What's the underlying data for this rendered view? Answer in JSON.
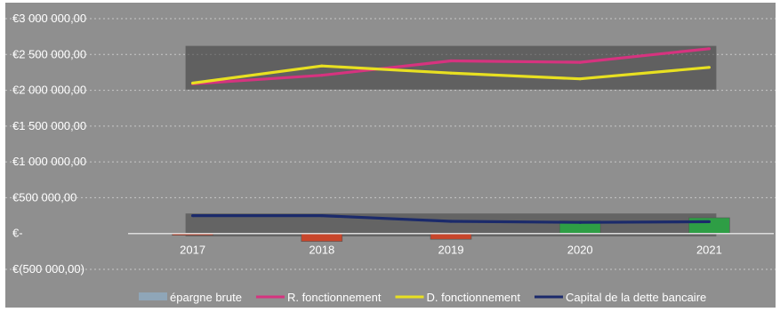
{
  "chart_data": {
    "type": "bar",
    "title": "",
    "xlabel": "",
    "ylabel": "",
    "categories": [
      "2017",
      "2018",
      "2019",
      "2020",
      "2021"
    ],
    "ylim": [
      -500000,
      3000000
    ],
    "yticks": [
      3000000,
      2500000,
      2000000,
      1500000,
      1000000,
      500000,
      0,
      -500000
    ],
    "ytick_labels": [
      "€3 000 000,00",
      "€2 500 000,00",
      "€2 000 000,00",
      "€1 500 000,00",
      "€1 000 000,00",
      "€500 000,00",
      "€-",
      "€(500 000,00)"
    ],
    "grid": true,
    "legend_position": "bottom",
    "background": "#8f8f8f",
    "series": [
      {
        "name": "épargne brute",
        "kind": "bar",
        "values": [
          -20000,
          -110000,
          -80000,
          180000,
          220000
        ],
        "positive_color": "#2e9e45",
        "negative_color": "#c8462b",
        "legend_color": "#8fa6b8"
      },
      {
        "name": "R. fonctionnement",
        "kind": "line",
        "color": "#d6337f",
        "values": [
          2090000,
          2210000,
          2410000,
          2390000,
          2580000
        ]
      },
      {
        "name": "D. fonctionnement",
        "kind": "line",
        "color": "#e8e021",
        "values": [
          2100000,
          2340000,
          2240000,
          2160000,
          2320000
        ]
      },
      {
        "name": "Capital de la dette bancaire",
        "kind": "line",
        "color": "#1b2a6b",
        "values": [
          250000,
          250000,
          170000,
          155000,
          165000
        ]
      }
    ]
  }
}
